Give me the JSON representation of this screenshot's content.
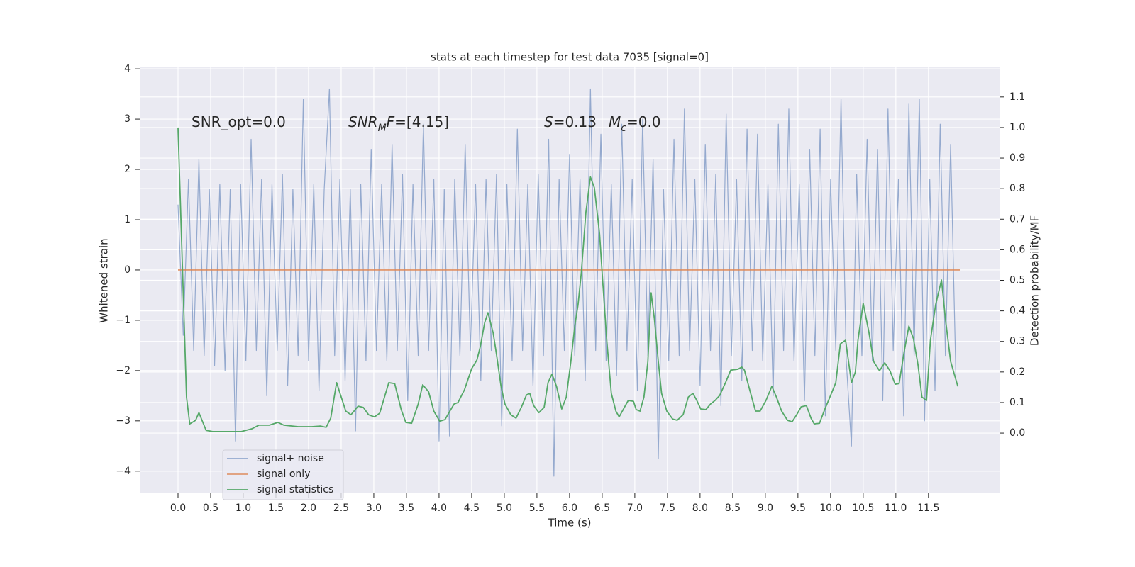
{
  "chart_data": {
    "type": "line",
    "title": "stats at each timestep for test data 7035 [signal=0]",
    "xlabel": "Time (s)",
    "ylabel": "Whitened strain",
    "y2label": "Detection probability/MF",
    "xlim": [
      -0.587,
      12.6
    ],
    "ylim": [
      -4.44,
      4.03
    ],
    "y2lim": [
      -0.197,
      1.197
    ],
    "xticks": [
      {
        "value": 0,
        "label": "0.0"
      },
      0.5,
      {
        "value": 1,
        "label": "1.0"
      },
      1.5,
      {
        "value": 2,
        "label": "2.0"
      },
      2.5,
      {
        "value": 3,
        "label": "3.0"
      },
      3.5,
      {
        "value": 4,
        "label": "4.0"
      },
      4.5,
      {
        "value": 5,
        "label": "5.0"
      },
      5.5,
      {
        "value": 6,
        "label": "6.0"
      },
      6.5,
      {
        "value": 7,
        "label": "7.0"
      },
      7.5,
      {
        "value": 8,
        "label": "8.0"
      },
      8.5,
      {
        "value": 9,
        "label": "9.0"
      },
      9.5,
      {
        "value": 10,
        "label": "10.0"
      },
      10.5,
      {
        "value": 11,
        "label": "11.0"
      },
      11.5
    ],
    "yticks": [
      {
        "value": -4,
        "label": "−4"
      },
      {
        "value": -3,
        "label": "−3"
      },
      {
        "value": -2,
        "label": "−2"
      },
      {
        "value": -1,
        "label": "−1"
      },
      0,
      1,
      2,
      3,
      4
    ],
    "y2ticks": [
      {
        "value": 0,
        "label": "0.0"
      },
      0.1,
      0.2,
      0.3,
      0.4,
      0.5,
      0.6,
      0.7,
      0.8,
      0.9,
      {
        "value": 1,
        "label": "1.0"
      },
      1.1
    ],
    "grid": true,
    "legend": "lower left",
    "annotations": [
      {
        "parts": [
          {
            "text": "SNR_opt=0.0"
          }
        ]
      },
      {
        "parts": [
          {
            "text": "SNR",
            "italic": true
          },
          {
            "text": "M",
            "italic": true,
            "sub": true
          },
          {
            "text": "F",
            "italic": true
          },
          {
            "text": "=[4.15]"
          }
        ]
      },
      {
        "parts": [
          {
            "text": "S",
            "italic": true
          },
          {
            "text": "=0.13"
          }
        ]
      },
      {
        "parts": [
          {
            "text": "M",
            "italic": true
          },
          {
            "text": "c",
            "italic": true,
            "sub": true
          },
          {
            "text": "=0.0"
          }
        ]
      }
    ],
    "series": [
      {
        "name": "signal+ noise",
        "color": "#4c72b0",
        "alpha": 0.55,
        "x": [
          0,
          0.08,
          0.16,
          0.24,
          0.32,
          0.4,
          0.48,
          0.56,
          0.64,
          0.72,
          0.8,
          0.88,
          0.96,
          1.04,
          1.12,
          1.2,
          1.28,
          1.36,
          1.44,
          1.52,
          1.6,
          1.68,
          1.76,
          1.84,
          1.92,
          2,
          2.08,
          2.16,
          2.24,
          2.32,
          2.4,
          2.48,
          2.56,
          2.64,
          2.72,
          2.8,
          2.88,
          2.96,
          3.04,
          3.12,
          3.2,
          3.28,
          3.36,
          3.44,
          3.52,
          3.6,
          3.68,
          3.76,
          3.84,
          3.92,
          4,
          4.08,
          4.16,
          4.24,
          4.32,
          4.4,
          4.48,
          4.56,
          4.64,
          4.72,
          4.8,
          4.88,
          4.96,
          5.04,
          5.12,
          5.2,
          5.28,
          5.36,
          5.44,
          5.52,
          5.6,
          5.68,
          5.76,
          5.84,
          5.92,
          6,
          6.08,
          6.16,
          6.24,
          6.32,
          6.4,
          6.48,
          6.56,
          6.64,
          6.72,
          6.8,
          6.88,
          6.96,
          7.04,
          7.12,
          7.2,
          7.28,
          7.36,
          7.44,
          7.52,
          7.6,
          7.68,
          7.76,
          7.84,
          7.92,
          8,
          8.08,
          8.16,
          8.24,
          8.32,
          8.4,
          8.48,
          8.56,
          8.64,
          8.72,
          8.8,
          8.88,
          8.96,
          9.04,
          9.12,
          9.2,
          9.28,
          9.36,
          9.44,
          9.52,
          9.6,
          9.68,
          9.76,
          9.84,
          9.92,
          10,
          10.08,
          10.16,
          10.24,
          10.32,
          10.4,
          10.48,
          10.56,
          10.64,
          10.72,
          10.8,
          10.88,
          10.96,
          11.04,
          11.12,
          11.2,
          11.28,
          11.36,
          11.44,
          11.52,
          11.6,
          11.68,
          11.76,
          11.84,
          11.92
        ],
        "values": [
          1.3,
          -1.3,
          1.8,
          -1.6,
          2.2,
          -1.7,
          1.6,
          -1.9,
          1.7,
          -2.0,
          1.6,
          -3.4,
          1.7,
          -1.8,
          2.6,
          -1.6,
          1.8,
          -2.5,
          1.7,
          -1.6,
          1.9,
          -2.3,
          1.6,
          -1.7,
          3.4,
          -1.8,
          1.7,
          -2.4,
          1.6,
          3.6,
          -1.7,
          1.8,
          -2.2,
          1.6,
          -3.2,
          1.7,
          -1.8,
          2.4,
          -1.6,
          1.7,
          -1.8,
          2.5,
          -1.6,
          1.9,
          -2.6,
          1.7,
          -1.7,
          2.9,
          -1.6,
          1.8,
          -3.4,
          1.6,
          -3.3,
          1.8,
          -1.7,
          2.5,
          -1.6,
          1.7,
          -2.2,
          1.8,
          -1.6,
          1.9,
          -3.1,
          1.7,
          -1.8,
          2.8,
          -1.6,
          1.7,
          -2.3,
          1.9,
          -1.7,
          2.6,
          -4.1,
          1.8,
          -1.6,
          2.3,
          -1.7,
          1.8,
          -2.2,
          3.6,
          -1.6,
          2.7,
          -1.8,
          1.7,
          -2.1,
          2.9,
          -1.6,
          1.8,
          -2.4,
          3.0,
          -1.7,
          2.2,
          -3.75,
          1.6,
          -1.8,
          2.6,
          -1.7,
          3.2,
          -1.6,
          1.8,
          -2.3,
          2.5,
          -1.6,
          1.9,
          -2.7,
          3.1,
          -1.7,
          1.8,
          -2.2,
          2.8,
          -1.6,
          2.7,
          -1.8,
          1.7,
          -2.5,
          2.9,
          -1.6,
          3.2,
          -1.8,
          1.7,
          -2.6,
          2.4,
          -1.7,
          2.8,
          -2.9,
          1.8,
          -1.6,
          3.4,
          -1.8,
          -3.5,
          1.9,
          -1.7,
          2.6,
          -1.8,
          2.4,
          -2.6,
          3.2,
          -1.6,
          1.8,
          -2.9,
          3.3,
          -1.7,
          3.4,
          -3.0,
          1.8,
          -2.4,
          2.9,
          -1.7,
          2.5,
          -2.1
        ]
      },
      {
        "name": "signal only",
        "color": "#dd8452",
        "alpha": 0.8,
        "x": [
          0,
          11.99
        ],
        "values": [
          0,
          0
        ]
      },
      {
        "name": "signal statistics",
        "color": "#55a868",
        "alpha": 1,
        "axis": "y2",
        "x": [
          0,
          0.13,
          0.18,
          0.27,
          0.32,
          0.43,
          0.53,
          0.97,
          1.13,
          1.24,
          1.4,
          1.53,
          1.62,
          1.84,
          2.05,
          2.18,
          2.27,
          2.34,
          2.43,
          2.57,
          2.65,
          2.76,
          2.84,
          2.92,
          3.01,
          3.09,
          3.23,
          3.32,
          3.42,
          3.49,
          3.58,
          3.68,
          3.75,
          3.84,
          3.92,
          4.01,
          4.09,
          4.18,
          4.23,
          4.29,
          4.39,
          4.5,
          4.58,
          4.63,
          4.7,
          4.75,
          4.83,
          4.88,
          4.95,
          5.01,
          5.1,
          5.18,
          5.26,
          5.34,
          5.39,
          5.45,
          5.53,
          5.61,
          5.67,
          5.73,
          5.8,
          5.88,
          5.95,
          6.02,
          6.08,
          6.13,
          6.18,
          6.25,
          6.32,
          6.38,
          6.46,
          6.51,
          6.57,
          6.64,
          6.71,
          6.76,
          6.84,
          6.9,
          6.98,
          7.02,
          7.08,
          7.14,
          7.2,
          7.25,
          7.3,
          7.36,
          7.41,
          7.49,
          7.58,
          7.65,
          7.74,
          7.82,
          7.89,
          7.95,
          8.01,
          8.09,
          8.16,
          8.23,
          8.3,
          8.39,
          8.47,
          8.58,
          8.64,
          8.68,
          8.76,
          8.85,
          8.92,
          9.01,
          9.1,
          9.17,
          9.25,
          9.34,
          9.41,
          9.48,
          9.55,
          9.63,
          9.7,
          9.75,
          9.83,
          9.9,
          9.99,
          10.08,
          10.15,
          10.23,
          10.32,
          10.38,
          10.42,
          10.5,
          10.59,
          10.66,
          10.75,
          10.83,
          10.91,
          10.99,
          11.05,
          11.13,
          11.2,
          11.27,
          11.34,
          11.4,
          11.47,
          11.53,
          11.61,
          11.7,
          11.76,
          11.84,
          11.95
        ],
        "values": [
          1.0,
          0.118,
          0.03,
          0.042,
          0.067,
          0.009,
          0.005,
          0.005,
          0.014,
          0.026,
          0.026,
          0.035,
          0.026,
          0.021,
          0.021,
          0.023,
          0.019,
          0.049,
          0.165,
          0.072,
          0.06,
          0.088,
          0.084,
          0.06,
          0.053,
          0.065,
          0.165,
          0.162,
          0.077,
          0.035,
          0.032,
          0.095,
          0.158,
          0.135,
          0.072,
          0.039,
          0.044,
          0.077,
          0.095,
          0.1,
          0.142,
          0.211,
          0.239,
          0.281,
          0.362,
          0.394,
          0.327,
          0.258,
          0.153,
          0.095,
          0.06,
          0.049,
          0.084,
          0.125,
          0.13,
          0.09,
          0.067,
          0.084,
          0.165,
          0.193,
          0.153,
          0.079,
          0.118,
          0.234,
          0.35,
          0.42,
          0.524,
          0.722,
          0.838,
          0.803,
          0.652,
          0.49,
          0.304,
          0.13,
          0.072,
          0.053,
          0.084,
          0.107,
          0.104,
          0.077,
          0.072,
          0.118,
          0.234,
          0.459,
          0.374,
          0.234,
          0.13,
          0.072,
          0.046,
          0.042,
          0.06,
          0.118,
          0.13,
          0.107,
          0.079,
          0.077,
          0.095,
          0.107,
          0.123,
          0.165,
          0.206,
          0.209,
          0.216,
          0.206,
          0.142,
          0.072,
          0.072,
          0.107,
          0.153,
          0.118,
          0.072,
          0.042,
          0.037,
          0.06,
          0.086,
          0.09,
          0.049,
          0.03,
          0.032,
          0.072,
          0.118,
          0.165,
          0.292,
          0.304,
          0.165,
          0.2,
          0.304,
          0.425,
          0.327,
          0.234,
          0.204,
          0.23,
          0.204,
          0.16,
          0.162,
          0.269,
          0.35,
          0.309,
          0.223,
          0.118,
          0.107,
          0.304,
          0.42,
          0.501,
          0.374,
          0.234,
          0.153
        ]
      }
    ]
  }
}
